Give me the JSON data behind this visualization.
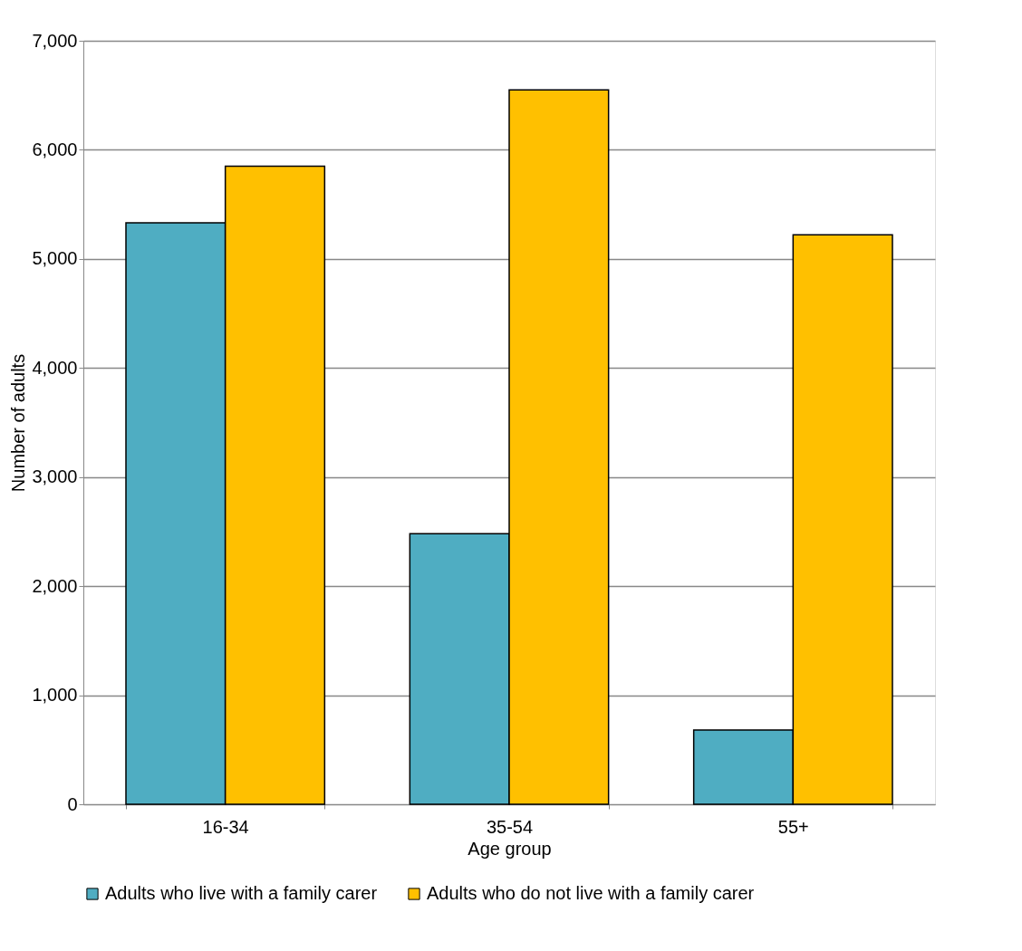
{
  "chart_data": {
    "type": "bar",
    "xlabel": "Age group",
    "ylabel": "Number of adults",
    "categories": [
      "16-34",
      "35-54",
      "55+"
    ],
    "series": [
      {
        "name": "Adults who live with a family carer",
        "color": "#4fadc2",
        "values": [
          5330,
          2480,
          680
        ]
      },
      {
        "name": "Adults who do not live with a family carer",
        "color": "#ffc000",
        "values": [
          5850,
          6550,
          5220
        ]
      }
    ],
    "ylim": [
      0,
      7000
    ],
    "yticks": [
      {
        "value": 0,
        "label": "0"
      },
      {
        "value": 1000,
        "label": "1,000"
      },
      {
        "value": 2000,
        "label": "2,000"
      },
      {
        "value": 3000,
        "label": "3,000"
      },
      {
        "value": 4000,
        "label": "4,000"
      },
      {
        "value": 5000,
        "label": "5,000"
      },
      {
        "value": 6000,
        "label": "6,000"
      },
      {
        "value": 7000,
        "label": "7,000"
      }
    ],
    "grid": "y",
    "legend": "bottom"
  }
}
